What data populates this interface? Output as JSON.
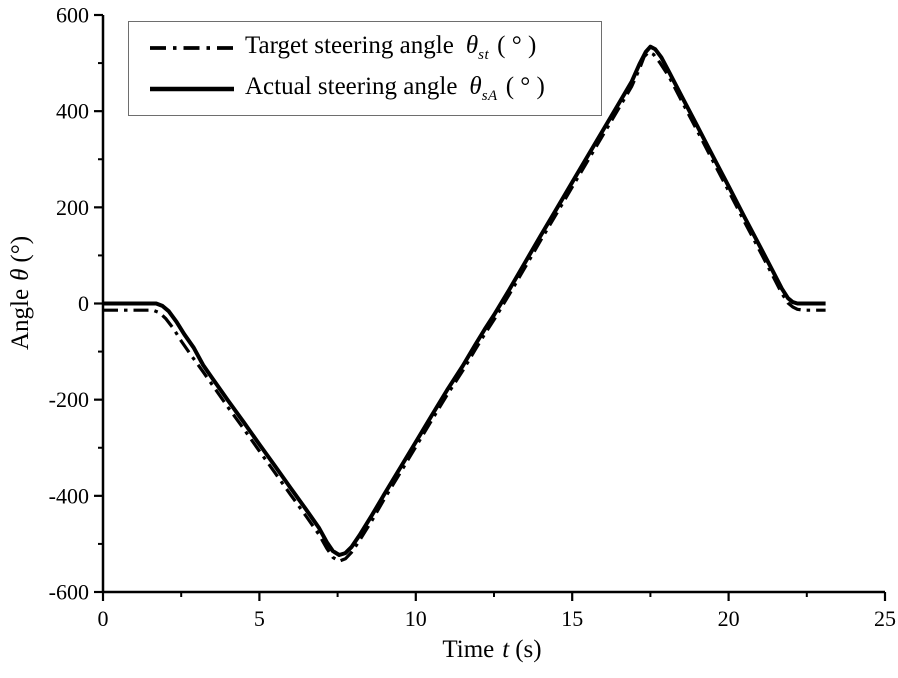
{
  "page": {
    "background": "#ffffff",
    "foreground": "#000000"
  },
  "axes": {
    "x": {
      "title_prefix": "Time",
      "title_symbol": "t",
      "title_suffix": "(s)"
    },
    "y": {
      "title_prefix": "Angle",
      "title_symbol": "θ",
      "title_suffix": "(°)"
    }
  },
  "legend": {
    "border_color": "#6e6e6e",
    "items": [
      {
        "label": "Target steering angle",
        "symbol": "θ",
        "subscript": "st",
        "unit": "( ° )",
        "style": "dash-dot"
      },
      {
        "label": "Actual steering angle",
        "symbol": "θ",
        "subscript": "sA",
        "unit": "( ° )",
        "style": "solid"
      }
    ]
  },
  "chart_data": {
    "type": "line",
    "title": "",
    "xlabel": "Time t (s)",
    "ylabel": "Angle θ (°)",
    "grid": false,
    "legend_position": "top-left",
    "x_axis": {
      "range": [
        0,
        25
      ],
      "major_ticks": [
        0,
        5,
        10,
        15,
        20,
        25
      ],
      "tick_labels": [
        "0",
        "5",
        "10",
        "15",
        "20",
        "25"
      ],
      "minor_step": 2.5
    },
    "y_axis": {
      "range": [
        -600,
        600
      ],
      "major_ticks": [
        -600,
        -400,
        -200,
        0,
        200,
        400,
        600
      ],
      "tick_labels": [
        "-600",
        "-400",
        "-200",
        "0",
        "200",
        "400",
        "600"
      ],
      "minor_step": 100
    },
    "series": [
      {
        "id": "target",
        "name": "Target steering angle θst ( ° )",
        "style": "dash-dot",
        "color": "#000000",
        "points": [
          [
            0,
            -14
          ],
          [
            1.6,
            -14
          ],
          [
            1.8,
            -19
          ],
          [
            2.0,
            -31
          ],
          [
            2.25,
            -52
          ],
          [
            2.5,
            -78
          ],
          [
            2.8,
            -106
          ],
          [
            3.2,
            -142
          ],
          [
            3.5,
            -170
          ],
          [
            4.0,
            -216
          ],
          [
            4.5,
            -261
          ],
          [
            5.0,
            -307
          ],
          [
            5.5,
            -352
          ],
          [
            6.0,
            -398
          ],
          [
            6.5,
            -443
          ],
          [
            6.9,
            -480
          ],
          [
            7.15,
            -509
          ],
          [
            7.35,
            -528
          ],
          [
            7.55,
            -536
          ],
          [
            7.75,
            -531
          ],
          [
            7.95,
            -517
          ],
          [
            8.2,
            -493
          ],
          [
            8.6,
            -451
          ],
          [
            9.0,
            -406
          ],
          [
            9.5,
            -352
          ],
          [
            10.0,
            -298
          ],
          [
            10.5,
            -244
          ],
          [
            11.0,
            -190
          ],
          [
            11.5,
            -140
          ],
          [
            11.9,
            -96
          ],
          [
            12.2,
            -64
          ],
          [
            12.5,
            -34
          ],
          [
            13.0,
            20
          ],
          [
            13.5,
            76
          ],
          [
            14.0,
            132
          ],
          [
            14.5,
            187
          ],
          [
            15.0,
            242
          ],
          [
            15.5,
            297
          ],
          [
            16.0,
            352
          ],
          [
            16.5,
            407
          ],
          [
            16.9,
            451
          ],
          [
            17.15,
            488
          ],
          [
            17.3,
            513
          ],
          [
            17.45,
            523
          ],
          [
            17.6,
            518
          ],
          [
            17.8,
            501
          ],
          [
            18.1,
            471
          ],
          [
            18.5,
            421
          ],
          [
            19.0,
            359
          ],
          [
            19.5,
            296
          ],
          [
            20.0,
            234
          ],
          [
            20.5,
            171
          ],
          [
            21.0,
            109
          ],
          [
            21.4,
            59
          ],
          [
            21.7,
            21
          ],
          [
            21.9,
            1
          ],
          [
            22.05,
            -7
          ],
          [
            22.2,
            -12
          ],
          [
            22.4,
            -14
          ],
          [
            23.1,
            -14
          ]
        ]
      },
      {
        "id": "actual",
        "name": "Actual steering angle θsA ( ° )",
        "style": "solid",
        "color": "#000000",
        "points": [
          [
            0,
            0
          ],
          [
            1.7,
            0
          ],
          [
            1.9,
            -5
          ],
          [
            2.1,
            -16
          ],
          [
            2.35,
            -38
          ],
          [
            2.6,
            -64
          ],
          [
            2.9,
            -92
          ],
          [
            3.2,
            -128
          ],
          [
            3.5,
            -156
          ],
          [
            4.0,
            -202
          ],
          [
            4.5,
            -247
          ],
          [
            5.0,
            -293
          ],
          [
            5.5,
            -338
          ],
          [
            6.0,
            -384
          ],
          [
            6.5,
            -429
          ],
          [
            6.9,
            -466
          ],
          [
            7.15,
            -496
          ],
          [
            7.35,
            -515
          ],
          [
            7.55,
            -523
          ],
          [
            7.75,
            -519
          ],
          [
            7.95,
            -506
          ],
          [
            8.2,
            -482
          ],
          [
            8.6,
            -440
          ],
          [
            9.0,
            -396
          ],
          [
            9.5,
            -342
          ],
          [
            10.0,
            -288
          ],
          [
            10.5,
            -234
          ],
          [
            11.0,
            -180
          ],
          [
            11.5,
            -130
          ],
          [
            11.9,
            -86
          ],
          [
            12.2,
            -54
          ],
          [
            12.5,
            -24
          ],
          [
            13.0,
            30
          ],
          [
            13.5,
            86
          ],
          [
            14.0,
            142
          ],
          [
            14.5,
            197
          ],
          [
            15.0,
            252
          ],
          [
            15.5,
            307
          ],
          [
            16.0,
            362
          ],
          [
            16.5,
            417
          ],
          [
            16.9,
            461
          ],
          [
            17.15,
            498
          ],
          [
            17.35,
            523
          ],
          [
            17.5,
            534
          ],
          [
            17.65,
            529
          ],
          [
            17.85,
            512
          ],
          [
            18.1,
            481
          ],
          [
            18.5,
            431
          ],
          [
            19.0,
            369
          ],
          [
            19.5,
            306
          ],
          [
            20.0,
            244
          ],
          [
            20.5,
            181
          ],
          [
            21.0,
            119
          ],
          [
            21.4,
            69
          ],
          [
            21.7,
            31
          ],
          [
            21.9,
            11
          ],
          [
            22.05,
            3
          ],
          [
            22.2,
            0
          ],
          [
            23.1,
            0
          ]
        ]
      }
    ]
  }
}
